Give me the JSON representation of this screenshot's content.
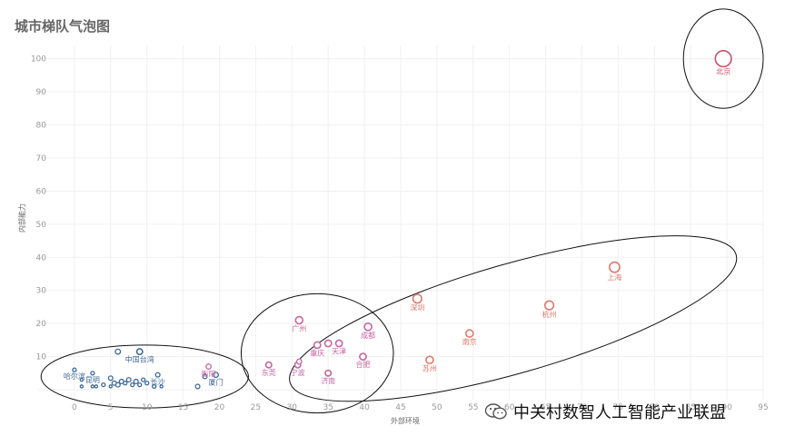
{
  "chart_data": {
    "type": "scatter",
    "title": "城市梯队气泡图",
    "xlabel": "外部环境",
    "ylabel": "内部能力",
    "xlim": [
      -5,
      95
    ],
    "ylim": [
      -3,
      104
    ],
    "x_ticks": [
      0,
      5,
      10,
      15,
      20,
      25,
      30,
      35,
      40,
      45,
      50,
      55,
      60,
      65,
      70,
      75,
      80,
      85,
      90,
      95
    ],
    "y_ticks": [
      10,
      20,
      30,
      40,
      50,
      60,
      70,
      80,
      90,
      100
    ],
    "grid": true,
    "tier_colors": {
      "tier1": "#c8506e",
      "tier2": "#e0786a",
      "tier3": "#c864a0",
      "tier4": "#3e6a9a"
    },
    "points": [
      {
        "name": "北京",
        "x": 89.5,
        "y": 100,
        "tier": "tier1",
        "size": 11,
        "label": "北京"
      },
      {
        "name": "上海",
        "x": 74.5,
        "y": 37,
        "tier": "tier2",
        "size": 7,
        "label": "上海"
      },
      {
        "name": "深圳",
        "x": 47.3,
        "y": 27.5,
        "tier": "tier2",
        "size": 6,
        "label": "深圳"
      },
      {
        "name": "杭州",
        "x": 65.5,
        "y": 25.5,
        "tier": "tier2",
        "size": 6,
        "label": "杭州"
      },
      {
        "name": "南京",
        "x": 54.5,
        "y": 17,
        "tier": "tier2",
        "size": 5,
        "label": "南京"
      },
      {
        "name": "苏州",
        "x": 49,
        "y": 9,
        "tier": "tier2",
        "size": 5,
        "label": "苏州"
      },
      {
        "name": "广州",
        "x": 31,
        "y": 21,
        "tier": "tier3",
        "size": 5,
        "label": "广州"
      },
      {
        "name": "成都",
        "x": 40.5,
        "y": 19,
        "tier": "tier3",
        "size": 5,
        "label": "成都"
      },
      {
        "name": "重庆",
        "x": 33.5,
        "y": 13.5,
        "tier": "tier3",
        "size": 4.5,
        "label": "重庆"
      },
      {
        "name": "天津",
        "x": 36.5,
        "y": 14,
        "tier": "tier3",
        "size": 4.5,
        "label": "天津"
      },
      {
        "name": "",
        "x": 35,
        "y": 14,
        "tier": "tier3",
        "size": 4.5,
        "label": ""
      },
      {
        "name": "合肥",
        "x": 39.8,
        "y": 10,
        "tier": "tier3",
        "size": 4.5,
        "label": "合肥"
      },
      {
        "name": "东莞",
        "x": 26.8,
        "y": 7.5,
        "tier": "tier3",
        "size": 4,
        "label": "东莞"
      },
      {
        "name": "宁波",
        "x": 30.8,
        "y": 7.5,
        "tier": "tier3",
        "size": 4,
        "label": "宁波"
      },
      {
        "name": "",
        "x": 31,
        "y": 8.5,
        "tier": "tier3",
        "size": 3.5,
        "label": ""
      },
      {
        "name": "济南",
        "x": 35,
        "y": 5,
        "tier": "tier3",
        "size": 4,
        "label": "济南"
      },
      {
        "name": "衡阳",
        "x": 18.5,
        "y": 7,
        "tier": "tier3",
        "size": 3.5,
        "label": "衡阳"
      },
      {
        "name": "中国台湾",
        "x": 9,
        "y": 11.5,
        "tier": "tier4",
        "size": 4,
        "label": "中国台湾"
      },
      {
        "name": "",
        "x": 6,
        "y": 11.5,
        "tier": "tier4",
        "size": 3.5,
        "label": ""
      },
      {
        "name": "哈尔滨",
        "x": 0,
        "y": 6,
        "tier": "tier4",
        "size": 2.5,
        "label": "哈尔滨"
      },
      {
        "name": "昆明",
        "x": 2.5,
        "y": 5,
        "tier": "tier4",
        "size": 2.5,
        "label": "昆明"
      },
      {
        "name": "长沙",
        "x": 11.5,
        "y": 4.5,
        "tier": "tier4",
        "size": 3,
        "label": "长沙"
      },
      {
        "name": "厦门",
        "x": 19.5,
        "y": 4.5,
        "tier": "tier4",
        "size": 3.5,
        "label": "厦门"
      },
      {
        "name": "",
        "x": 18,
        "y": 4,
        "tier": "tier4",
        "size": 3,
        "label": ""
      },
      {
        "name": "",
        "x": 17,
        "y": 1,
        "tier": "tier4",
        "size": 3,
        "label": ""
      },
      {
        "name": "",
        "x": 5,
        "y": 3.5,
        "tier": "tier4",
        "size": 3,
        "label": ""
      },
      {
        "name": "",
        "x": 5.5,
        "y": 2,
        "tier": "tier4",
        "size": 3,
        "label": ""
      },
      {
        "name": "",
        "x": 6,
        "y": 1.5,
        "tier": "tier4",
        "size": 3,
        "label": ""
      },
      {
        "name": "",
        "x": 6.5,
        "y": 2.5,
        "tier": "tier4",
        "size": 3,
        "label": ""
      },
      {
        "name": "",
        "x": 7,
        "y": 2,
        "tier": "tier4",
        "size": 2.5,
        "label": ""
      },
      {
        "name": "",
        "x": 7.5,
        "y": 3,
        "tier": "tier4",
        "size": 3,
        "label": ""
      },
      {
        "name": "",
        "x": 8,
        "y": 1.5,
        "tier": "tier4",
        "size": 2.5,
        "label": ""
      },
      {
        "name": "",
        "x": 8.5,
        "y": 2.5,
        "tier": "tier4",
        "size": 3,
        "label": ""
      },
      {
        "name": "",
        "x": 9,
        "y": 1.5,
        "tier": "tier4",
        "size": 2.5,
        "label": ""
      },
      {
        "name": "",
        "x": 9.5,
        "y": 3,
        "tier": "tier4",
        "size": 2.5,
        "label": ""
      },
      {
        "name": "",
        "x": 10,
        "y": 2,
        "tier": "tier4",
        "size": 2.5,
        "label": ""
      },
      {
        "name": "",
        "x": 11,
        "y": 1,
        "tier": "tier4",
        "size": 2.5,
        "label": ""
      },
      {
        "name": "",
        "x": 4,
        "y": 1.5,
        "tier": "tier4",
        "size": 2.5,
        "label": ""
      },
      {
        "name": "",
        "x": 3,
        "y": 1,
        "tier": "tier4",
        "size": 2,
        "label": ""
      },
      {
        "name": "",
        "x": 2.5,
        "y": 1,
        "tier": "tier4",
        "size": 2,
        "label": ""
      },
      {
        "name": "",
        "x": 1,
        "y": 1,
        "tier": "tier4",
        "size": 2,
        "label": ""
      },
      {
        "name": "",
        "x": 1,
        "y": 3,
        "tier": "tier4",
        "size": 2,
        "label": ""
      },
      {
        "name": "",
        "x": 5,
        "y": 1,
        "tier": "tier4",
        "size": 2,
        "label": ""
      },
      {
        "name": "",
        "x": 12,
        "y": 1,
        "tier": "tier4",
        "size": 2,
        "label": ""
      }
    ],
    "groups": [
      {
        "name": "tier1",
        "cx": 89.5,
        "cy": 100,
        "rx": 5.5,
        "ry": 15,
        "angle": 0
      },
      {
        "name": "tier2",
        "cx": 60.5,
        "cy": 21.5,
        "rx": 32,
        "ry": 16.5,
        "angle": -16
      },
      {
        "name": "tier3",
        "cx": 33.5,
        "cy": 11,
        "rx": 10.5,
        "ry": 18,
        "angle": 0
      },
      {
        "name": "tier4",
        "cx": 9.7,
        "cy": 4,
        "rx": 14.3,
        "ry": 9.5,
        "angle": 0
      }
    ]
  },
  "watermark": {
    "text": "中关村数智人工智能产业联盟",
    "icon": "wechat-icon"
  }
}
